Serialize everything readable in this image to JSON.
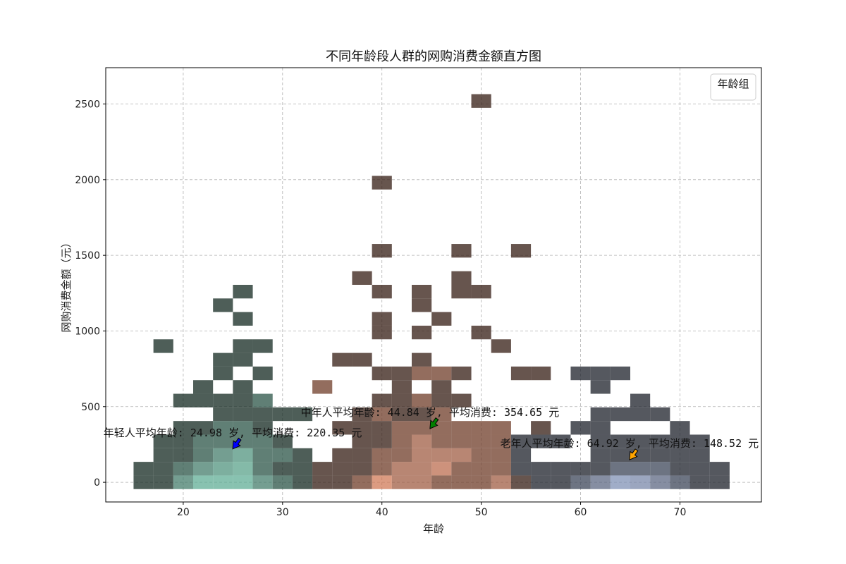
{
  "chart_data": {
    "type": "heatmap",
    "title": "不同年龄段人群的网购消费金额直方图",
    "xlabel": "年龄",
    "ylabel": "网购消费金额（元）",
    "xlim": [
      12.2,
      78.2
    ],
    "ylim": [
      -130,
      2740
    ],
    "xticks": [
      20,
      30,
      40,
      50,
      60,
      70
    ],
    "yticks": [
      0,
      500,
      1000,
      1500,
      2000,
      2500
    ],
    "grid": true,
    "legend": {
      "title": "年龄组",
      "placement": "top-right",
      "entries": []
    },
    "bin_width": {
      "x": 2,
      "y": 90
    },
    "series": [
      {
        "color": "#66c2a5",
        "cells": [
          {
            "x": 16,
            "y": 90,
            "count": 1
          },
          {
            "x": 16,
            "y": 0,
            "count": 1
          },
          {
            "x": 18,
            "y": 900,
            "count": 1
          },
          {
            "x": 18,
            "y": 270,
            "count": 1
          },
          {
            "x": 18,
            "y": 180,
            "count": 1
          },
          {
            "x": 18,
            "y": 90,
            "count": 1
          },
          {
            "x": 18,
            "y": 0,
            "count": 1
          },
          {
            "x": 20,
            "y": 540,
            "count": 1
          },
          {
            "x": 20,
            "y": 360,
            "count": 1
          },
          {
            "x": 20,
            "y": 270,
            "count": 1
          },
          {
            "x": 20,
            "y": 180,
            "count": 1
          },
          {
            "x": 20,
            "y": 90,
            "count": 2
          },
          {
            "x": 20,
            "y": 0,
            "count": 3
          },
          {
            "x": 22,
            "y": 630,
            "count": 1
          },
          {
            "x": 22,
            "y": 540,
            "count": 1
          },
          {
            "x": 22,
            "y": 360,
            "count": 1
          },
          {
            "x": 22,
            "y": 270,
            "count": 2
          },
          {
            "x": 22,
            "y": 180,
            "count": 2
          },
          {
            "x": 22,
            "y": 90,
            "count": 3
          },
          {
            "x": 22,
            "y": 0,
            "count": 6
          },
          {
            "x": 24,
            "y": 1170,
            "count": 1
          },
          {
            "x": 24,
            "y": 810,
            "count": 1
          },
          {
            "x": 24,
            "y": 720,
            "count": 1
          },
          {
            "x": 24,
            "y": 540,
            "count": 1
          },
          {
            "x": 24,
            "y": 450,
            "count": 1
          },
          {
            "x": 24,
            "y": 360,
            "count": 2
          },
          {
            "x": 24,
            "y": 270,
            "count": 2
          },
          {
            "x": 24,
            "y": 180,
            "count": 3
          },
          {
            "x": 24,
            "y": 90,
            "count": 4
          },
          {
            "x": 24,
            "y": 0,
            "count": 6
          },
          {
            "x": 26,
            "y": 1260,
            "count": 1
          },
          {
            "x": 26,
            "y": 1080,
            "count": 1
          },
          {
            "x": 26,
            "y": 900,
            "count": 1
          },
          {
            "x": 26,
            "y": 810,
            "count": 1
          },
          {
            "x": 26,
            "y": 630,
            "count": 1
          },
          {
            "x": 26,
            "y": 540,
            "count": 1
          },
          {
            "x": 26,
            "y": 450,
            "count": 1
          },
          {
            "x": 26,
            "y": 360,
            "count": 2
          },
          {
            "x": 26,
            "y": 270,
            "count": 2
          },
          {
            "x": 26,
            "y": 180,
            "count": 4
          },
          {
            "x": 26,
            "y": 90,
            "count": 5
          },
          {
            "x": 26,
            "y": 0,
            "count": 6
          },
          {
            "x": 28,
            "y": 900,
            "count": 1
          },
          {
            "x": 28,
            "y": 720,
            "count": 1
          },
          {
            "x": 28,
            "y": 540,
            "count": 2
          },
          {
            "x": 28,
            "y": 450,
            "count": 1
          },
          {
            "x": 28,
            "y": 360,
            "count": 1
          },
          {
            "x": 28,
            "y": 270,
            "count": 2
          },
          {
            "x": 28,
            "y": 180,
            "count": 2
          },
          {
            "x": 28,
            "y": 90,
            "count": 2
          },
          {
            "x": 28,
            "y": 0,
            "count": 3
          },
          {
            "x": 30,
            "y": 450,
            "count": 1
          },
          {
            "x": 30,
            "y": 270,
            "count": 1
          },
          {
            "x": 30,
            "y": 180,
            "count": 2
          },
          {
            "x": 30,
            "y": 90,
            "count": 1
          },
          {
            "x": 30,
            "y": 0,
            "count": 2
          },
          {
            "x": 32,
            "y": 450,
            "count": 1
          },
          {
            "x": 32,
            "y": 180,
            "count": 1
          },
          {
            "x": 32,
            "y": 90,
            "count": 1
          },
          {
            "x": 32,
            "y": 0,
            "count": 1
          }
        ]
      },
      {
        "color": "#fc8d62",
        "cells": [
          {
            "x": 34,
            "y": 630,
            "count": 2
          },
          {
            "x": 34,
            "y": 90,
            "count": 1
          },
          {
            "x": 34,
            "y": 0,
            "count": 1
          },
          {
            "x": 36,
            "y": 810,
            "count": 1
          },
          {
            "x": 36,
            "y": 360,
            "count": 1
          },
          {
            "x": 36,
            "y": 180,
            "count": 1
          },
          {
            "x": 36,
            "y": 90,
            "count": 1
          },
          {
            "x": 36,
            "y": 0,
            "count": 1
          },
          {
            "x": 38,
            "y": 1350,
            "count": 1
          },
          {
            "x": 38,
            "y": 810,
            "count": 1
          },
          {
            "x": 38,
            "y": 450,
            "count": 1
          },
          {
            "x": 38,
            "y": 360,
            "count": 1
          },
          {
            "x": 38,
            "y": 270,
            "count": 1
          },
          {
            "x": 38,
            "y": 180,
            "count": 1
          },
          {
            "x": 38,
            "y": 90,
            "count": 1
          },
          {
            "x": 38,
            "y": 0,
            "count": 2
          },
          {
            "x": 40,
            "y": 1980,
            "count": 1
          },
          {
            "x": 40,
            "y": 1530,
            "count": 1
          },
          {
            "x": 40,
            "y": 1260,
            "count": 1
          },
          {
            "x": 40,
            "y": 1080,
            "count": 1
          },
          {
            "x": 40,
            "y": 990,
            "count": 1
          },
          {
            "x": 40,
            "y": 720,
            "count": 1
          },
          {
            "x": 40,
            "y": 540,
            "count": 1
          },
          {
            "x": 40,
            "y": 450,
            "count": 2
          },
          {
            "x": 40,
            "y": 360,
            "count": 1
          },
          {
            "x": 40,
            "y": 270,
            "count": 1
          },
          {
            "x": 40,
            "y": 180,
            "count": 2
          },
          {
            "x": 40,
            "y": 90,
            "count": 2
          },
          {
            "x": 40,
            "y": 0,
            "count": 5
          },
          {
            "x": 42,
            "y": 720,
            "count": 1
          },
          {
            "x": 42,
            "y": 630,
            "count": 1
          },
          {
            "x": 42,
            "y": 540,
            "count": 1
          },
          {
            "x": 42,
            "y": 450,
            "count": 1
          },
          {
            "x": 42,
            "y": 360,
            "count": 2
          },
          {
            "x": 42,
            "y": 270,
            "count": 2
          },
          {
            "x": 42,
            "y": 180,
            "count": 2
          },
          {
            "x": 42,
            "y": 90,
            "count": 3
          },
          {
            "x": 42,
            "y": 0,
            "count": 3
          },
          {
            "x": 44,
            "y": 1260,
            "count": 1
          },
          {
            "x": 44,
            "y": 1170,
            "count": 1
          },
          {
            "x": 44,
            "y": 990,
            "count": 1
          },
          {
            "x": 44,
            "y": 810,
            "count": 1
          },
          {
            "x": 44,
            "y": 720,
            "count": 2
          },
          {
            "x": 44,
            "y": 540,
            "count": 2
          },
          {
            "x": 44,
            "y": 450,
            "count": 1
          },
          {
            "x": 44,
            "y": 360,
            "count": 2
          },
          {
            "x": 44,
            "y": 270,
            "count": 3
          },
          {
            "x": 44,
            "y": 180,
            "count": 3
          },
          {
            "x": 44,
            "y": 90,
            "count": 3
          },
          {
            "x": 44,
            "y": 0,
            "count": 3
          },
          {
            "x": 46,
            "y": 1080,
            "count": 1
          },
          {
            "x": 46,
            "y": 720,
            "count": 2
          },
          {
            "x": 46,
            "y": 630,
            "count": 1
          },
          {
            "x": 46,
            "y": 540,
            "count": 1
          },
          {
            "x": 46,
            "y": 450,
            "count": 2
          },
          {
            "x": 46,
            "y": 360,
            "count": 2
          },
          {
            "x": 46,
            "y": 270,
            "count": 2
          },
          {
            "x": 46,
            "y": 180,
            "count": 3
          },
          {
            "x": 46,
            "y": 90,
            "count": 4
          },
          {
            "x": 46,
            "y": 0,
            "count": 2
          },
          {
            "x": 48,
            "y": 1530,
            "count": 1
          },
          {
            "x": 48,
            "y": 1350,
            "count": 1
          },
          {
            "x": 48,
            "y": 1260,
            "count": 1
          },
          {
            "x": 48,
            "y": 720,
            "count": 1
          },
          {
            "x": 48,
            "y": 540,
            "count": 1
          },
          {
            "x": 48,
            "y": 360,
            "count": 2
          },
          {
            "x": 48,
            "y": 270,
            "count": 2
          },
          {
            "x": 48,
            "y": 180,
            "count": 3
          },
          {
            "x": 48,
            "y": 90,
            "count": 2
          },
          {
            "x": 48,
            "y": 0,
            "count": 2
          },
          {
            "x": 50,
            "y": 2520,
            "count": 1
          },
          {
            "x": 50,
            "y": 1260,
            "count": 1
          },
          {
            "x": 50,
            "y": 990,
            "count": 1
          },
          {
            "x": 50,
            "y": 360,
            "count": 2
          },
          {
            "x": 50,
            "y": 270,
            "count": 2
          },
          {
            "x": 50,
            "y": 180,
            "count": 2
          },
          {
            "x": 50,
            "y": 90,
            "count": 2
          },
          {
            "x": 50,
            "y": 0,
            "count": 2
          },
          {
            "x": 52,
            "y": 900,
            "count": 1
          },
          {
            "x": 52,
            "y": 360,
            "count": 2
          },
          {
            "x": 52,
            "y": 270,
            "count": 2
          },
          {
            "x": 52,
            "y": 180,
            "count": 2
          },
          {
            "x": 52,
            "y": 90,
            "count": 2
          },
          {
            "x": 52,
            "y": 0,
            "count": 3
          },
          {
            "x": 54,
            "y": 1530,
            "count": 1
          },
          {
            "x": 54,
            "y": 720,
            "count": 1
          },
          {
            "x": 54,
            "y": 0,
            "count": 1
          },
          {
            "x": 56,
            "y": 720,
            "count": 1
          },
          {
            "x": 56,
            "y": 360,
            "count": 1
          }
        ]
      },
      {
        "color": "#8da0cb",
        "cells": [
          {
            "x": 54,
            "y": 270,
            "count": 1
          },
          {
            "x": 54,
            "y": 180,
            "count": 1
          },
          {
            "x": 54,
            "y": 90,
            "count": 1
          },
          {
            "x": 56,
            "y": 270,
            "count": 1
          },
          {
            "x": 56,
            "y": 90,
            "count": 1
          },
          {
            "x": 56,
            "y": 0,
            "count": 1
          },
          {
            "x": 58,
            "y": 270,
            "count": 1
          },
          {
            "x": 58,
            "y": 90,
            "count": 1
          },
          {
            "x": 58,
            "y": 0,
            "count": 1
          },
          {
            "x": 60,
            "y": 720,
            "count": 1
          },
          {
            "x": 60,
            "y": 360,
            "count": 1
          },
          {
            "x": 60,
            "y": 90,
            "count": 1
          },
          {
            "x": 60,
            "y": 0,
            "count": 2
          },
          {
            "x": 62,
            "y": 720,
            "count": 1
          },
          {
            "x": 62,
            "y": 630,
            "count": 1
          },
          {
            "x": 62,
            "y": 450,
            "count": 1
          },
          {
            "x": 62,
            "y": 360,
            "count": 1
          },
          {
            "x": 62,
            "y": 270,
            "count": 1
          },
          {
            "x": 62,
            "y": 180,
            "count": 1
          },
          {
            "x": 62,
            "y": 90,
            "count": 1
          },
          {
            "x": 62,
            "y": 0,
            "count": 3
          },
          {
            "x": 64,
            "y": 720,
            "count": 1
          },
          {
            "x": 64,
            "y": 450,
            "count": 1
          },
          {
            "x": 64,
            "y": 270,
            "count": 1
          },
          {
            "x": 64,
            "y": 180,
            "count": 1
          },
          {
            "x": 64,
            "y": 90,
            "count": 2
          },
          {
            "x": 64,
            "y": 0,
            "count": 6
          },
          {
            "x": 66,
            "y": 540,
            "count": 1
          },
          {
            "x": 66,
            "y": 450,
            "count": 1
          },
          {
            "x": 66,
            "y": 270,
            "count": 1
          },
          {
            "x": 66,
            "y": 180,
            "count": 1
          },
          {
            "x": 66,
            "y": 90,
            "count": 2
          },
          {
            "x": 66,
            "y": 0,
            "count": 5
          },
          {
            "x": 68,
            "y": 450,
            "count": 1
          },
          {
            "x": 68,
            "y": 270,
            "count": 1
          },
          {
            "x": 68,
            "y": 180,
            "count": 1
          },
          {
            "x": 68,
            "y": 90,
            "count": 2
          },
          {
            "x": 68,
            "y": 0,
            "count": 3
          },
          {
            "x": 70,
            "y": 360,
            "count": 1
          },
          {
            "x": 70,
            "y": 270,
            "count": 1
          },
          {
            "x": 70,
            "y": 180,
            "count": 1
          },
          {
            "x": 70,
            "y": 90,
            "count": 1
          },
          {
            "x": 70,
            "y": 0,
            "count": 2
          },
          {
            "x": 72,
            "y": 270,
            "count": 1
          },
          {
            "x": 72,
            "y": 180,
            "count": 1
          },
          {
            "x": 72,
            "y": 90,
            "count": 1
          },
          {
            "x": 72,
            "y": 0,
            "count": 1
          },
          {
            "x": 74,
            "y": 90,
            "count": 1
          },
          {
            "x": 74,
            "y": 0,
            "count": 1
          }
        ]
      }
    ],
    "annotations": [
      {
        "text": "年轻人平均年龄: 24.98 岁, 平均消费: 220.35 元",
        "x": 24.98,
        "y": 220.35,
        "arrow_color": "#0000ff"
      },
      {
        "text": "中年人平均年龄: 44.84 岁, 平均消费: 354.65 元",
        "x": 44.84,
        "y": 354.65,
        "arrow_color": "#008000"
      },
      {
        "text": "老年人平均年龄: 64.92 岁, 平均消费: 148.52 元",
        "x": 64.92,
        "y": 148.52,
        "arrow_color": "#ffa500"
      }
    ]
  }
}
